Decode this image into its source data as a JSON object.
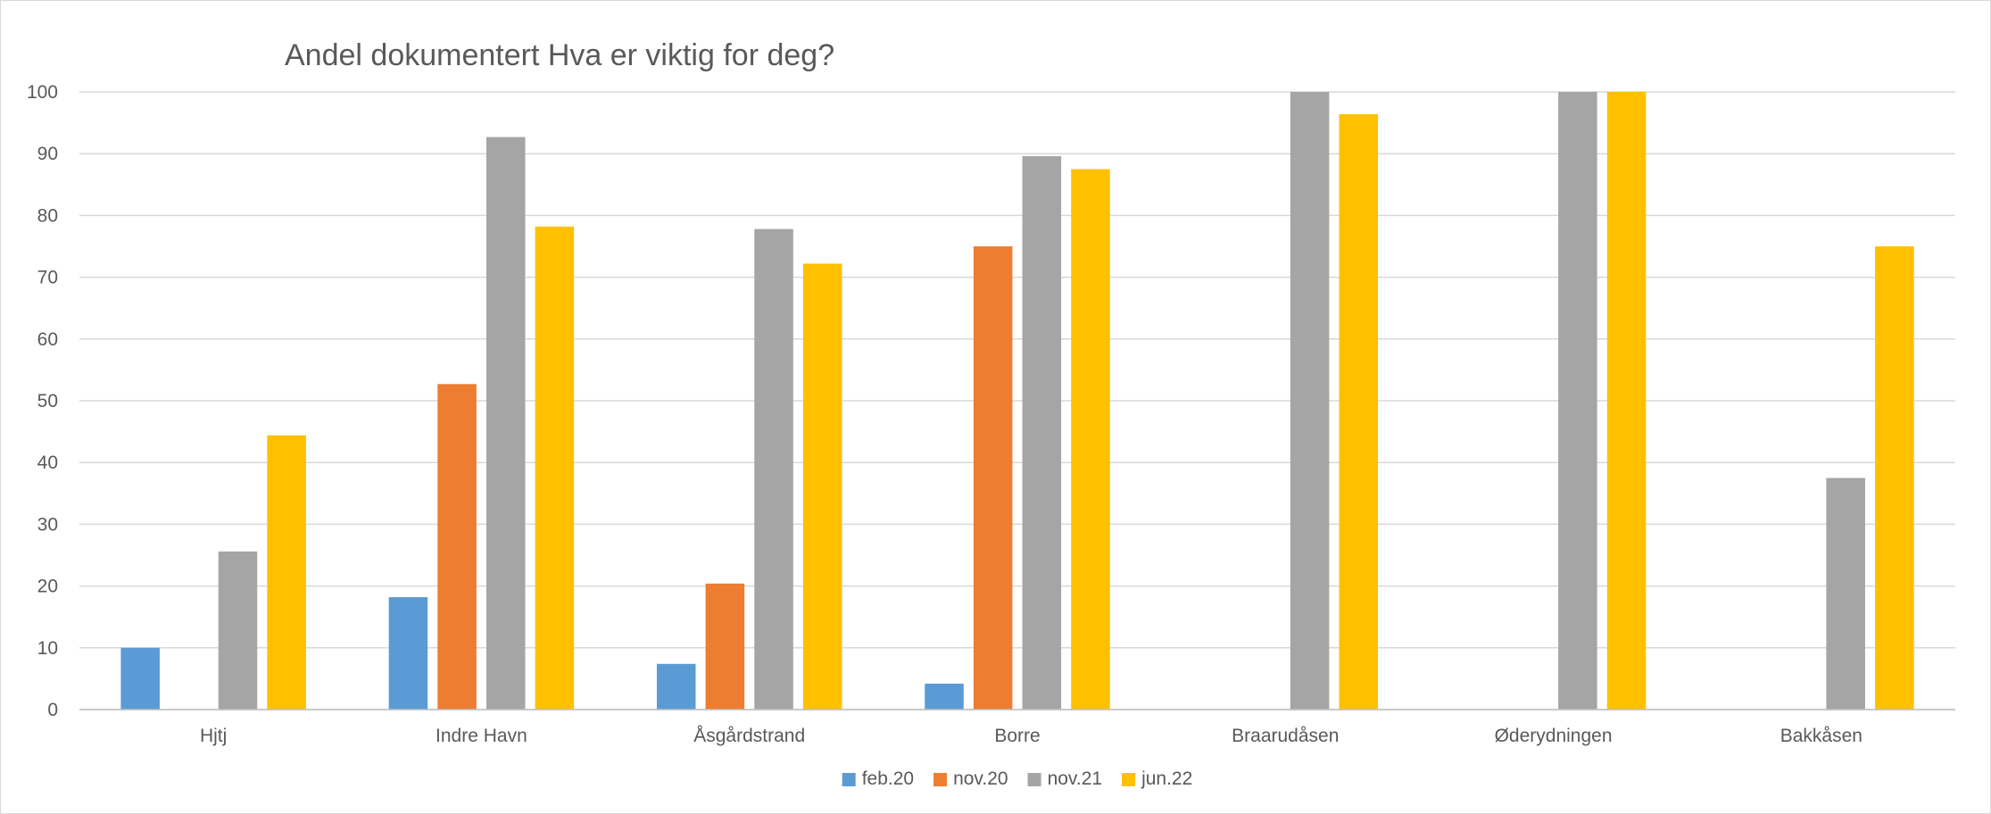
{
  "chart_data": {
    "type": "bar",
    "title": "Andel dokumentert Hva er viktig for deg?",
    "categories": [
      "Hjtj",
      "Indre Havn",
      "Åsgårdstrand",
      "Borre",
      "Braarudåsen",
      "Øderydningen",
      "Bakkåsen"
    ],
    "series": [
      {
        "name": "feb.20",
        "color": "#5b9bd5",
        "values": [
          10,
          18.2,
          7.4,
          4.2,
          null,
          null,
          null
        ]
      },
      {
        "name": "nov.20",
        "color": "#ed7d31",
        "values": [
          null,
          52.7,
          20.4,
          75,
          null,
          null,
          null
        ]
      },
      {
        "name": "nov.21",
        "color": "#a5a5a5",
        "values": [
          25.6,
          92.7,
          77.8,
          89.6,
          100,
          100,
          37.5
        ]
      },
      {
        "name": "jun.22",
        "color": "#ffc000",
        "values": [
          44.4,
          78.2,
          72.2,
          87.5,
          96.4,
          100,
          75
        ]
      }
    ],
    "xlabel": "",
    "ylabel": "",
    "ylim": [
      0,
      100
    ],
    "yticks": [
      "0",
      "10",
      "20",
      "30",
      "40",
      "50",
      "60",
      "70",
      "80",
      "90",
      "100"
    ],
    "grid": true,
    "legend": "bottom"
  }
}
